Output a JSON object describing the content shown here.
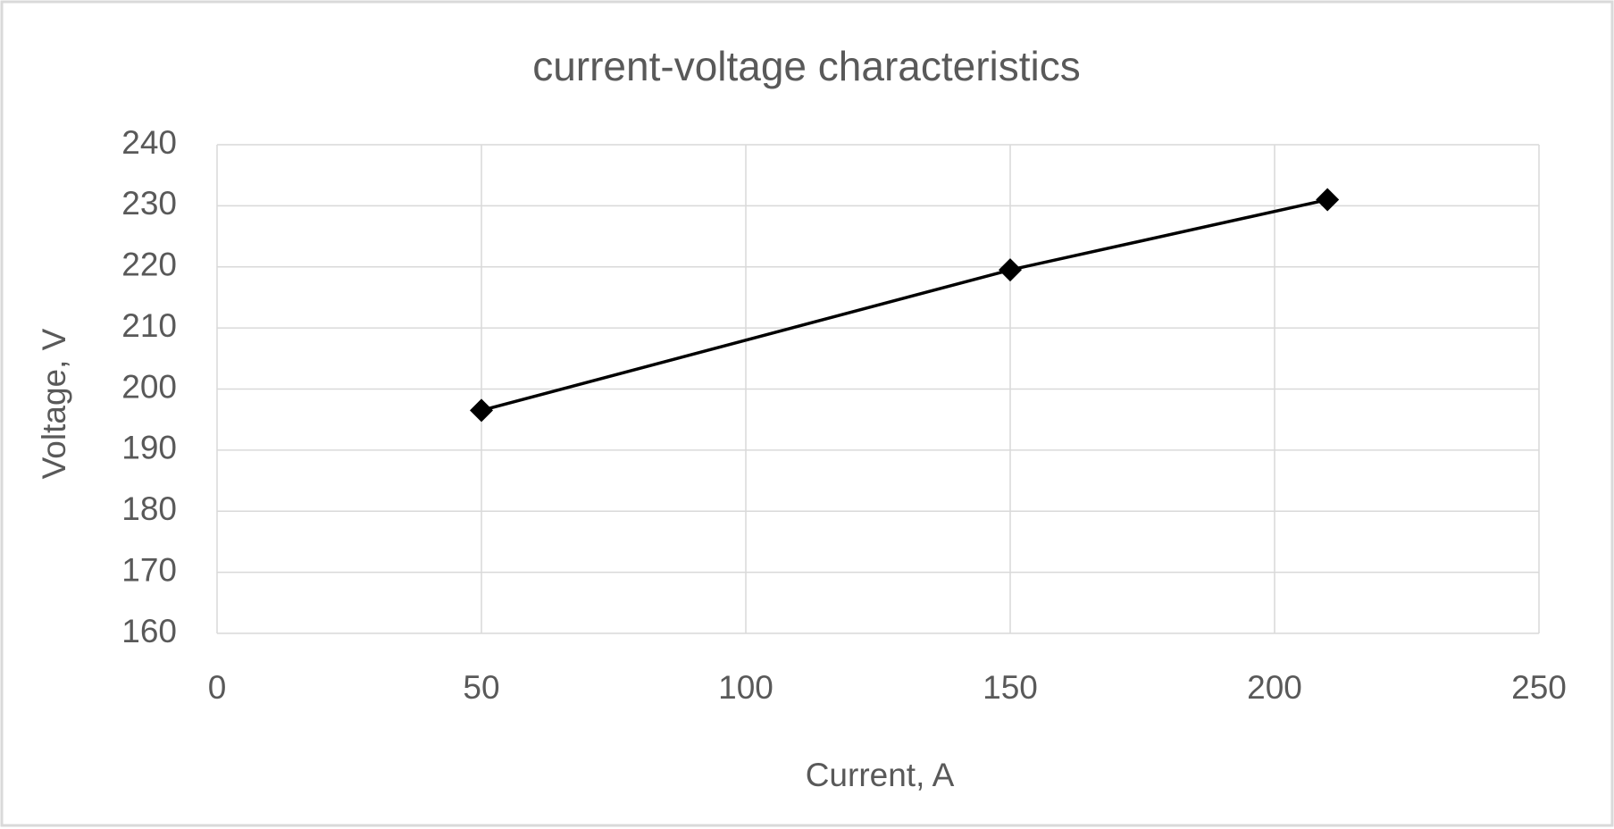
{
  "chart_data": {
    "type": "line",
    "title": "current-voltage characteristics",
    "x_label": "Current, A",
    "y_label": "Voltage, V",
    "x": [
      50,
      150,
      210
    ],
    "values": [
      196.5,
      219.5,
      231
    ],
    "color": "#000000",
    "marker": "diamond",
    "xlim": [
      0,
      250
    ],
    "xticks": [
      0,
      50,
      100,
      150,
      200,
      250
    ],
    "ylim": [
      160,
      240
    ],
    "yticks": [
      160,
      170,
      180,
      190,
      200,
      210,
      220,
      230,
      240
    ],
    "grid": true
  }
}
